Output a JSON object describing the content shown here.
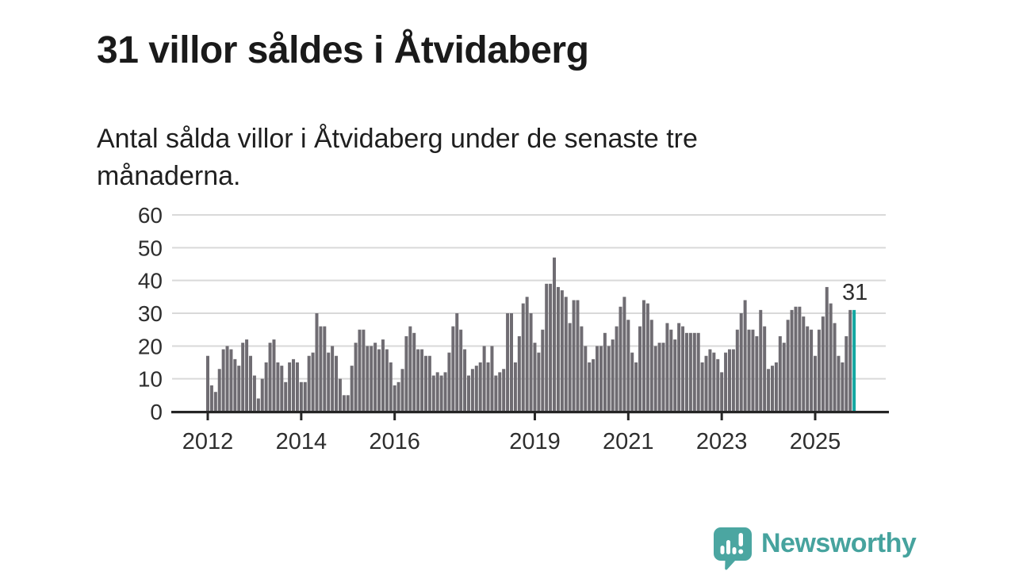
{
  "header": {
    "title": "31 villor såldes i Åtvidaberg",
    "subtitle": "Antal sålda villor i Åtvidaberg under de senaste tre månaderna."
  },
  "chart_data": {
    "type": "bar",
    "title": "31 villor såldes i Åtvidaberg",
    "xlabel": "",
    "ylabel": "",
    "x_start": "2012-01",
    "x_end": "2025-11",
    "x_unit": "month",
    "x_tick_years": [
      "2012",
      "2014",
      "2016",
      "2019",
      "2021",
      "2023",
      "2025"
    ],
    "y_ticks": [
      "0",
      "10",
      "20",
      "30",
      "40",
      "50",
      "60"
    ],
    "ylim": [
      0,
      60
    ],
    "grid": true,
    "legend": false,
    "values": [
      17,
      8,
      6,
      13,
      19,
      20,
      19,
      16,
      14,
      21,
      22,
      17,
      11,
      4,
      10,
      15,
      21,
      22,
      15,
      14,
      9,
      15,
      16,
      15,
      9,
      9,
      17,
      18,
      30,
      26,
      26,
      18,
      20,
      17,
      10,
      5,
      5,
      14,
      21,
      25,
      25,
      20,
      20,
      21,
      19,
      22,
      19,
      15,
      8,
      9,
      13,
      23,
      26,
      24,
      19,
      19,
      17,
      17,
      11,
      12,
      11,
      12,
      18,
      26,
      30,
      25,
      19,
      11,
      13,
      14,
      15,
      20,
      15,
      20,
      11,
      12,
      13,
      30,
      30,
      15,
      23,
      33,
      35,
      30,
      21,
      18,
      25,
      39,
      39,
      47,
      38,
      37,
      35,
      27,
      34,
      34,
      26,
      20,
      15,
      16,
      20,
      20,
      24,
      20,
      22,
      26,
      32,
      35,
      28,
      18,
      15,
      26,
      34,
      33,
      28,
      20,
      21,
      21,
      27,
      25,
      22,
      27,
      26,
      24,
      24,
      24,
      24,
      15,
      17,
      19,
      18,
      16,
      12,
      18,
      19,
      19,
      25,
      30,
      34,
      25,
      25,
      23,
      31,
      26,
      13,
      14,
      15,
      23,
      21,
      28,
      31,
      32,
      32,
      29,
      26,
      25,
      17,
      25,
      29,
      38,
      33,
      27,
      17,
      15,
      23,
      31,
      31
    ],
    "highlight_index": 166,
    "annotation": {
      "text": "31"
    },
    "bar_color": "#6f6c72",
    "highlight_color": "#13a7a1"
  },
  "colors": {
    "grid": "#d9d9d9",
    "axis": "#252525",
    "tick_text": "#2e2e2e",
    "logo": "#4ba6a1"
  },
  "footer": {
    "brand": "Newsworthy"
  }
}
